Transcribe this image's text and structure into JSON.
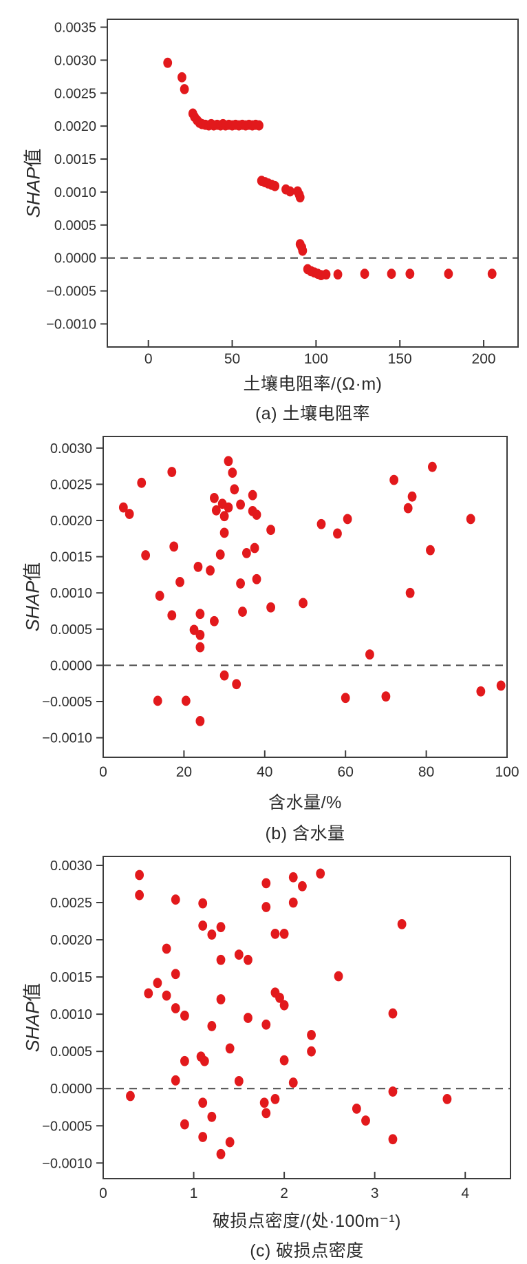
{
  "figure": {
    "y_title_italic": "SHAP",
    "y_title_suffix": "值"
  },
  "colors": {
    "dot": "#e2191c",
    "axis": "#3c3c3c",
    "text": "#2e2e2e",
    "zero_line": "#4a4a4a",
    "background": "#ffffff"
  },
  "chart_data": [
    {
      "type": "scatter",
      "id": "a",
      "title": "(a) 土壤电阻率",
      "xlabel": "土壤电阻率/(Ω·m)",
      "caption": "(a) 土壤电阻率",
      "ylabel": "SHAP值",
      "xlim": [
        -24.5,
        220.5
      ],
      "ylim": [
        -0.00135,
        0.00362
      ],
      "xticks": [
        0,
        50,
        100,
        150,
        200
      ],
      "yticks": [
        0.0035,
        0.003,
        0.0025,
        0.002,
        0.0015,
        0.001,
        0.0005,
        0.0,
        -0.0005,
        -0.001
      ],
      "grid": false,
      "zero_dashed_line": 0,
      "points": [
        [
          11.5,
          0.00296
        ],
        [
          20,
          0.00274
        ],
        [
          21.5,
          0.00256
        ],
        [
          26.5,
          0.00219
        ],
        [
          27.5,
          0.00214
        ],
        [
          29,
          0.00209
        ],
        [
          30.5,
          0.00205
        ],
        [
          32,
          0.00203
        ],
        [
          34,
          0.00202
        ],
        [
          36,
          0.00201
        ],
        [
          37.5,
          0.00203
        ],
        [
          39,
          0.00201
        ],
        [
          41,
          0.00202
        ],
        [
          43,
          0.00201
        ],
        [
          44.5,
          0.00203
        ],
        [
          46,
          0.00201
        ],
        [
          48,
          0.00202
        ],
        [
          50,
          0.00201
        ],
        [
          52,
          0.00202
        ],
        [
          54,
          0.00201
        ],
        [
          56,
          0.00202
        ],
        [
          58,
          0.00201
        ],
        [
          60,
          0.00202
        ],
        [
          62,
          0.00201
        ],
        [
          64,
          0.00202
        ],
        [
          66,
          0.00201
        ],
        [
          67.5,
          0.00117
        ],
        [
          69.5,
          0.00115
        ],
        [
          71.5,
          0.00113
        ],
        [
          73.5,
          0.00111
        ],
        [
          75.5,
          0.00109
        ],
        [
          82,
          0.00104
        ],
        [
          84.5,
          0.00101
        ],
        [
          89,
          0.00101
        ],
        [
          90,
          0.00096
        ],
        [
          90.5,
          0.00092
        ],
        [
          90.5,
          0.00021
        ],
        [
          91.5,
          0.00016
        ],
        [
          92,
          0.00011
        ],
        [
          95,
          -0.00017
        ],
        [
          97,
          -0.0002
        ],
        [
          99,
          -0.00022
        ],
        [
          101,
          -0.00024
        ],
        [
          103,
          -0.00026
        ],
        [
          106,
          -0.00025
        ],
        [
          113,
          -0.00025
        ],
        [
          129,
          -0.00024
        ],
        [
          145,
          -0.00024
        ],
        [
          156,
          -0.00024
        ],
        [
          179,
          -0.00024
        ],
        [
          205,
          -0.00024
        ]
      ]
    },
    {
      "type": "scatter",
      "id": "b",
      "title": "(b) 含水量",
      "xlabel": "含水量/%",
      "caption": "(b) 含水量",
      "ylabel": "SHAP值",
      "xlim": [
        0,
        100
      ],
      "ylim": [
        -0.00127,
        0.00316
      ],
      "xticks": [
        0,
        20,
        40,
        60,
        80,
        100
      ],
      "yticks": [
        0.003,
        0.0025,
        0.002,
        0.0015,
        0.001,
        0.0005,
        0.0,
        -0.0005,
        -0.001
      ],
      "grid": false,
      "zero_dashed_line": 0,
      "points": [
        [
          5,
          0.00218
        ],
        [
          6.5,
          0.00209
        ],
        [
          9.5,
          0.00252
        ],
        [
          10.5,
          0.00152
        ],
        [
          13.5,
          -0.00049
        ],
        [
          14,
          0.00096
        ],
        [
          17,
          0.00267
        ],
        [
          17.5,
          0.00164
        ],
        [
          17,
          0.00069
        ],
        [
          19,
          0.00115
        ],
        [
          20.5,
          -0.00049
        ],
        [
          22.5,
          0.00049
        ],
        [
          23.5,
          0.00136
        ],
        [
          24,
          0.00071
        ],
        [
          24,
          0.00042
        ],
        [
          24,
          0.00025
        ],
        [
          24,
          -0.00077
        ],
        [
          26.5,
          0.00131
        ],
        [
          27.5,
          0.00061
        ],
        [
          27.5,
          0.00231
        ],
        [
          28,
          0.00214
        ],
        [
          29,
          0.00153
        ],
        [
          29.5,
          0.00223
        ],
        [
          30,
          0.00206
        ],
        [
          30,
          0.00183
        ],
        [
          30,
          -0.00014
        ],
        [
          31,
          0.00282
        ],
        [
          31,
          0.00218
        ],
        [
          32,
          0.00266
        ],
        [
          32.5,
          0.00243
        ],
        [
          33,
          -0.00026
        ],
        [
          34,
          0.00222
        ],
        [
          34,
          0.00113
        ],
        [
          34.5,
          0.00074
        ],
        [
          35.5,
          0.00155
        ],
        [
          37,
          0.00235
        ],
        [
          37,
          0.00213
        ],
        [
          38,
          0.00208
        ],
        [
          37.5,
          0.00162
        ],
        [
          38,
          0.00119
        ],
        [
          41.5,
          0.00187
        ],
        [
          41.5,
          0.0008
        ],
        [
          49.5,
          0.00086
        ],
        [
          54,
          0.00195
        ],
        [
          58,
          0.00182
        ],
        [
          60.5,
          0.00202
        ],
        [
          60,
          -0.00045
        ],
        [
          66,
          0.00015
        ],
        [
          70,
          -0.00043
        ],
        [
          72,
          0.00256
        ],
        [
          75.5,
          0.00217
        ],
        [
          76.5,
          0.00233
        ],
        [
          76,
          0.001
        ],
        [
          81.5,
          0.00274
        ],
        [
          81,
          0.00159
        ],
        [
          91,
          0.00202
        ],
        [
          93.5,
          -0.00036
        ],
        [
          98.5,
          -0.00028
        ]
      ]
    },
    {
      "type": "scatter",
      "id": "c",
      "title": "(c) 破损点密度",
      "xlabel": "破损点密度/(处·100m⁻¹)",
      "caption": "(c) 破损点密度",
      "ylabel": "SHAP值",
      "xlim": [
        0,
        4.5
      ],
      "ylim": [
        -0.00121,
        0.00312
      ],
      "xticks": [
        0,
        1,
        2,
        3,
        4
      ],
      "yticks": [
        0.003,
        0.0025,
        0.002,
        0.0015,
        0.001,
        0.0005,
        0.0,
        -0.0005,
        -0.001
      ],
      "grid": false,
      "zero_dashed_line": 0,
      "points": [
        [
          0.3,
          -0.0001
        ],
        [
          0.4,
          0.00287
        ],
        [
          0.4,
          0.0026
        ],
        [
          0.5,
          0.00128
        ],
        [
          0.6,
          0.00142
        ],
        [
          0.7,
          0.00188
        ],
        [
          0.7,
          0.00125
        ],
        [
          0.8,
          0.00254
        ],
        [
          0.8,
          0.00154
        ],
        [
          0.8,
          0.00108
        ],
        [
          0.8,
          0.00011
        ],
        [
          0.9,
          0.00098
        ],
        [
          0.9,
          0.00037
        ],
        [
          0.9,
          -0.00048
        ],
        [
          1.1,
          0.00249
        ],
        [
          1.1,
          0.00219
        ],
        [
          1.08,
          0.00043
        ],
        [
          1.12,
          0.00037
        ],
        [
          1.1,
          -0.00019
        ],
        [
          1.1,
          -0.00065
        ],
        [
          1.2,
          0.00207
        ],
        [
          1.2,
          0.00084
        ],
        [
          1.2,
          -0.00038
        ],
        [
          1.3,
          0.00217
        ],
        [
          1.3,
          0.00173
        ],
        [
          1.3,
          0.0012
        ],
        [
          1.3,
          -0.00088
        ],
        [
          1.4,
          0.00054
        ],
        [
          1.4,
          -0.00072
        ],
        [
          1.5,
          0.0018
        ],
        [
          1.5,
          0.0001
        ],
        [
          1.6,
          0.00173
        ],
        [
          1.6,
          0.00095
        ],
        [
          1.8,
          0.00276
        ],
        [
          1.8,
          0.00244
        ],
        [
          1.8,
          0.00086
        ],
        [
          1.78,
          -0.00019
        ],
        [
          1.8,
          -0.00033
        ],
        [
          1.9,
          0.00129
        ],
        [
          1.9,
          0.00208
        ],
        [
          1.9,
          -0.00014
        ],
        [
          1.95,
          0.00122
        ],
        [
          2,
          0.00208
        ],
        [
          2,
          0.00112
        ],
        [
          2,
          0.00038
        ],
        [
          2.1,
          0.00284
        ],
        [
          2.1,
          0.0025
        ],
        [
          2.1,
          8e-05
        ],
        [
          2.2,
          0.00272
        ],
        [
          2.3,
          0.00072
        ],
        [
          2.3,
          0.0005
        ],
        [
          2.4,
          0.00289
        ],
        [
          2.6,
          0.00151
        ],
        [
          2.8,
          -0.00027
        ],
        [
          2.9,
          -0.00043
        ],
        [
          3.2,
          0.00101
        ],
        [
          3.2,
          -4e-05
        ],
        [
          3.2,
          -0.00068
        ],
        [
          3.3,
          0.00221
        ],
        [
          3.8,
          -0.00014
        ]
      ]
    }
  ]
}
